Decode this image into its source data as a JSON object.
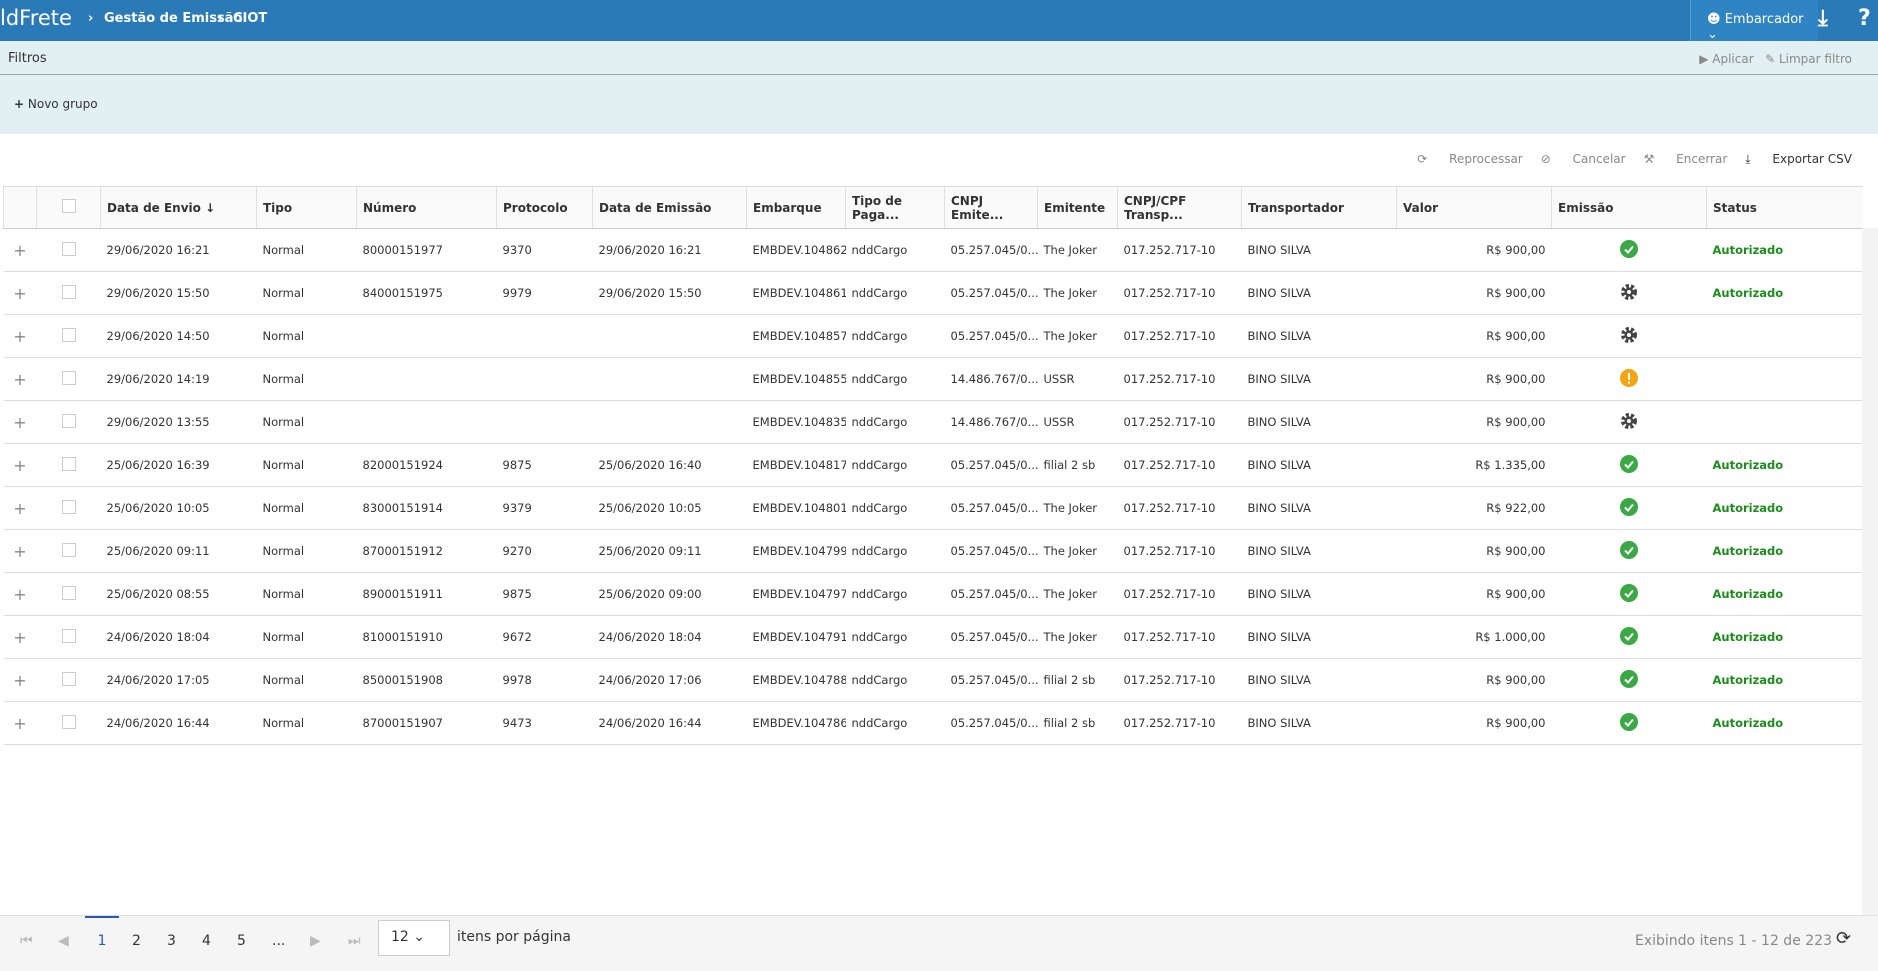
{
  "header": {
    "logo": "ldFrete",
    "breadcrumb": [
      "Gestão de Emissão",
      "CIOT"
    ],
    "user": "Embarcador"
  },
  "filters": {
    "title": "Filtros",
    "apply": "Aplicar",
    "clear": "Limpar filtro",
    "new_group": "Novo grupo"
  },
  "toolbar": [
    "Reprocessar",
    "Cancelar",
    "Encerrar",
    "Exportar CSV"
  ],
  "table": {
    "columns": [
      "Data de Envio",
      "Tipo",
      "Número",
      "Protocolo",
      "Data de Emissão",
      "Embarque",
      "Tipo de Paga...",
      "CNPJ Emite...",
      "Emitente",
      "CNPJ/CPF Transp...",
      "Transportador",
      "Valor",
      "Emissão",
      "Status"
    ],
    "rows": [
      [
        "29/06/2020 16:21",
        "Normal",
        "80000151977",
        "9370",
        "29/06/2020 16:21",
        "EMBDEV.104862",
        "nddCargo",
        "05.257.045/0...",
        "The Joker",
        "017.252.717-10",
        "BINO SILVA",
        "R$ 900,00",
        "Autorizado"
      ],
      [
        "29/06/2020 15:50",
        "Normal",
        "84000151975",
        "9979",
        "29/06/2020 15:50",
        "EMBDEV.104861",
        "nddCargo",
        "05.257.045/0...",
        "The Joker",
        "017.252.717-10",
        "BINO SILVA",
        "R$ 900,00",
        "Autorizado"
      ],
      [
        "29/06/2020 14:50",
        "Normal",
        null,
        null,
        null,
        "EMBDEV.104857",
        "nddCargo",
        "05.257.045/0...",
        "The Joker",
        "017.252.717-10",
        "BINO SILVA",
        "R$ 900,00",
        null
      ],
      [
        "29/06/2020 14:19",
        "Normal",
        null,
        null,
        null,
        "EMBDEV.104855",
        "nddCargo",
        "14.486.767/0...",
        "USSR",
        "017.252.717-10",
        "BINO SILVA",
        "R$ 900,00",
        null
      ],
      [
        "29/06/2020 13:55",
        "Normal",
        null,
        null,
        null,
        "EMBDEV.104835",
        "nddCargo",
        "14.486.767/0...",
        "USSR",
        "017.252.717-10",
        "BINO SILVA",
        "R$ 900,00",
        null
      ],
      [
        "25/06/2020 16:39",
        "Normal",
        "82000151924",
        "9875",
        "25/06/2020 16:40",
        "EMBDEV.104817",
        "nddCargo",
        "05.257.045/0...",
        "filial 2 sb",
        "017.252.717-10",
        "BINO SILVA",
        "R$ 1.335,00",
        "Autorizado"
      ],
      [
        "25/06/2020 10:05",
        "Normal",
        "83000151914",
        "9379",
        "25/06/2020 10:05",
        "EMBDEV.104801",
        "nddCargo",
        "05.257.045/0...",
        "The Joker",
        "017.252.717-10",
        "BINO SILVA",
        "R$ 922,00",
        "Autorizado"
      ],
      [
        "25/06/2020 09:11",
        "Normal",
        "87000151912",
        "9270",
        "25/06/2020 09:11",
        "EMBDEV.104799",
        "nddCargo",
        "05.257.045/0...",
        "The Joker",
        "017.252.717-10",
        "BINO SILVA",
        "R$ 900,00",
        "Autorizado"
      ],
      [
        "25/06/2020 08:55",
        "Normal",
        "89000151911",
        "9875",
        "25/06/2020 09:00",
        "EMBDEV.104797",
        "nddCargo",
        "05.257.045/0...",
        "The Joker",
        "017.252.717-10",
        "BINO SILVA",
        "R$ 900,00",
        "Autorizado"
      ],
      [
        "24/06/2020 18:04",
        "Normal",
        "81000151910",
        "9672",
        "24/06/2020 18:04",
        "EMBDEV.104791",
        "nddCargo",
        "05.257.045/0...",
        "The Joker",
        "017.252.717-10",
        "BINO SILVA",
        "R$ 1.000,00",
        "Autorizado"
      ],
      [
        "24/06/2020 17:05",
        "Normal",
        "85000151908",
        "9978",
        "24/06/2020 17:06",
        "EMBDEV.104788",
        "nddCargo",
        "05.257.045/0...",
        "filial 2 sb",
        "017.252.717-10",
        "BINO SILVA",
        "R$ 900,00",
        "Autorizado"
      ],
      [
        "24/06/2020 16:44",
        "Normal",
        "87000151907",
        "9473",
        "24/06/2020 16:44",
        "EMBDEV.104786",
        "nddCargo",
        "05.257.045/0...",
        "filial 2 sb",
        "017.252.717-10",
        "BINO SILVA",
        "R$ 900,00",
        "Autorizado"
      ]
    ],
    "emission_icons": [
      "check",
      "gear",
      "gear",
      "warning",
      "gear",
      "check",
      "check",
      "check",
      "check",
      "check",
      "check",
      "check"
    ]
  },
  "pagination": {
    "pages": [
      "1",
      "2",
      "3",
      "4",
      "5",
      "..."
    ],
    "page_size": "12",
    "per_page": "itens por página",
    "summary": "Exibindo itens 1 - 12 de 223"
  }
}
